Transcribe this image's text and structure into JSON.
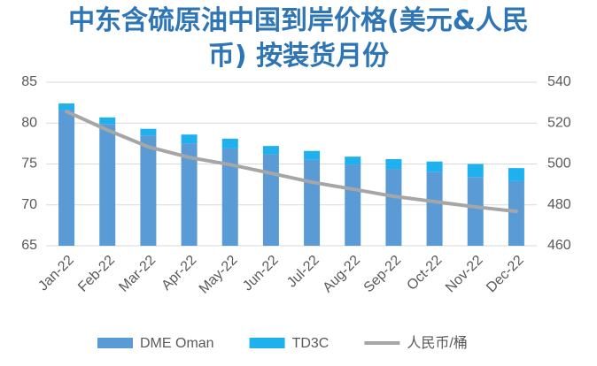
{
  "chart_data": {
    "type": "bar",
    "title": "中东含硫原油中国到岸价格(美元&人民币) 按装货月份",
    "stacked": true,
    "categories": [
      "Jan-22",
      "Feb-22",
      "Mar-22",
      "Apr-22",
      "May-22",
      "Jun-22",
      "Jul-22",
      "Aug-22",
      "Sep-22",
      "Oct-22",
      "Nov-22",
      "Dec-22"
    ],
    "series": [
      {
        "name": "DME Oman",
        "type": "bar",
        "color": "#5b9bd5",
        "values": [
          81.6,
          79.9,
          78.5,
          77.5,
          76.9,
          76.2,
          75.5,
          74.9,
          74.4,
          74.0,
          73.4,
          72.9
        ]
      },
      {
        "name": "TD3C",
        "type": "bar",
        "color": "#1fb0ee",
        "values": [
          0.8,
          0.8,
          0.8,
          1.1,
          1.2,
          1.0,
          1.1,
          1.0,
          1.2,
          1.3,
          1.6,
          1.6
        ]
      },
      {
        "name": "人民币/桶",
        "type": "line",
        "axis": "y2",
        "color": "#a6a6a6",
        "values": [
          525.7,
          516.6,
          508.4,
          503.2,
          499.7,
          495.5,
          491.1,
          487.7,
          484.2,
          481.6,
          479.0,
          476.8
        ]
      }
    ],
    "ylim": [
      65,
      85
    ],
    "yticks": [
      65,
      70,
      75,
      80,
      85
    ],
    "y2lim": [
      460,
      540
    ],
    "y2ticks": [
      460,
      480,
      500,
      520,
      540
    ],
    "grid": true,
    "legend": "bottom"
  }
}
